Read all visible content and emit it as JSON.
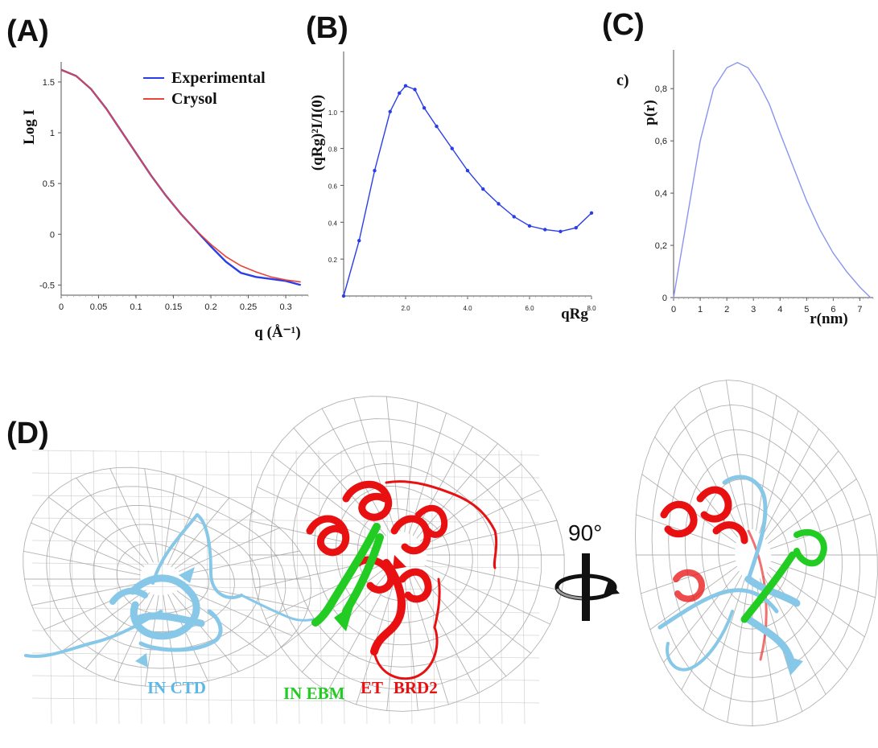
{
  "panels": {
    "a": "(A)",
    "b": "(B)",
    "c": "(C)",
    "d": "(D)"
  },
  "chart_data": [
    {
      "type": "line",
      "panel": "A",
      "xlabel": "q (Å⁻¹)",
      "ylabel": "Log I",
      "xlim": [
        0,
        0.33
      ],
      "ylim": [
        -0.6,
        1.65
      ],
      "x_ticks": [
        "0",
        "0.05",
        "0.1",
        "0.15",
        "0.2",
        "0.25",
        "0.3"
      ],
      "y_ticks": [
        "1.5",
        "1",
        "0.5",
        "0",
        "-0.5"
      ],
      "legend_position": "top-right",
      "series": [
        {
          "name": "Experimental",
          "color": "#2a3ee8",
          "x": [
            0.0,
            0.02,
            0.04,
            0.06,
            0.08,
            0.1,
            0.12,
            0.14,
            0.16,
            0.18,
            0.2,
            0.22,
            0.24,
            0.26,
            0.28,
            0.3,
            0.32
          ],
          "y": [
            1.62,
            1.56,
            1.43,
            1.24,
            1.02,
            0.8,
            0.58,
            0.38,
            0.2,
            0.04,
            -0.12,
            -0.27,
            -0.38,
            -0.42,
            -0.44,
            -0.46,
            -0.5
          ]
        },
        {
          "name": "Crysol",
          "color": "#e8443a",
          "x": [
            0.0,
            0.02,
            0.04,
            0.06,
            0.08,
            0.1,
            0.12,
            0.14,
            0.16,
            0.18,
            0.2,
            0.22,
            0.24,
            0.26,
            0.28,
            0.3,
            0.32
          ],
          "y": [
            1.62,
            1.56,
            1.43,
            1.24,
            1.02,
            0.8,
            0.58,
            0.38,
            0.2,
            0.04,
            -0.1,
            -0.22,
            -0.31,
            -0.37,
            -0.42,
            -0.45,
            -0.47
          ]
        }
      ]
    },
    {
      "type": "scatter",
      "panel": "B",
      "xlabel": "qRg",
      "ylabel": "(qRg)²I/I(0)",
      "xlim": [
        0,
        8
      ],
      "ylim": [
        0,
        1.3
      ],
      "x_ticks": [
        "2.0",
        "4.0",
        "6.0",
        "8.0"
      ],
      "y_ticks": [
        "0.2",
        "0.4",
        "0.6",
        "0.8",
        "1.0"
      ],
      "series": [
        {
          "name": "",
          "color": "#2a3ee8",
          "x": [
            0.0,
            0.5,
            1.0,
            1.5,
            1.8,
            2.0,
            2.3,
            2.6,
            3.0,
            3.5,
            4.0,
            4.5,
            5.0,
            5.5,
            6.0,
            6.5,
            7.0,
            7.5,
            8.0
          ],
          "y": [
            0.0,
            0.3,
            0.68,
            1.0,
            1.1,
            1.14,
            1.12,
            1.02,
            0.92,
            0.8,
            0.68,
            0.58,
            0.5,
            0.43,
            0.38,
            0.36,
            0.35,
            0.37,
            0.45
          ]
        }
      ]
    },
    {
      "type": "line",
      "panel": "C",
      "label": "c)",
      "xlabel": "r(nm)",
      "ylabel": "p(r)",
      "xlim": [
        0,
        7.5
      ],
      "ylim": [
        0,
        0.93
      ],
      "x_ticks": [
        "0",
        "1",
        "2",
        "3",
        "4",
        "5",
        "6",
        "7"
      ],
      "y_ticks": [
        "0",
        "0,2",
        "0,4",
        "0,6",
        "0,8"
      ],
      "series": [
        {
          "name": "",
          "color": "#8a94f0",
          "x": [
            0.0,
            0.5,
            1.0,
            1.5,
            2.0,
            2.4,
            2.8,
            3.2,
            3.6,
            4.0,
            4.5,
            5.0,
            5.5,
            6.0,
            6.5,
            7.0,
            7.4
          ],
          "y": [
            0.0,
            0.3,
            0.6,
            0.8,
            0.88,
            0.9,
            0.88,
            0.82,
            0.74,
            0.63,
            0.5,
            0.37,
            0.26,
            0.17,
            0.1,
            0.04,
            0.0
          ]
        }
      ]
    }
  ],
  "model": {
    "labels": {
      "ctd": "IN CTD",
      "ebm": "IN EBM",
      "brd2": "ET BRD2"
    },
    "rotation_label": "90°",
    "colors": {
      "ctd": "#87c8e8",
      "ebm": "#22cc22",
      "brd2": "#e81010",
      "mesh": "#9a9a9a"
    }
  }
}
